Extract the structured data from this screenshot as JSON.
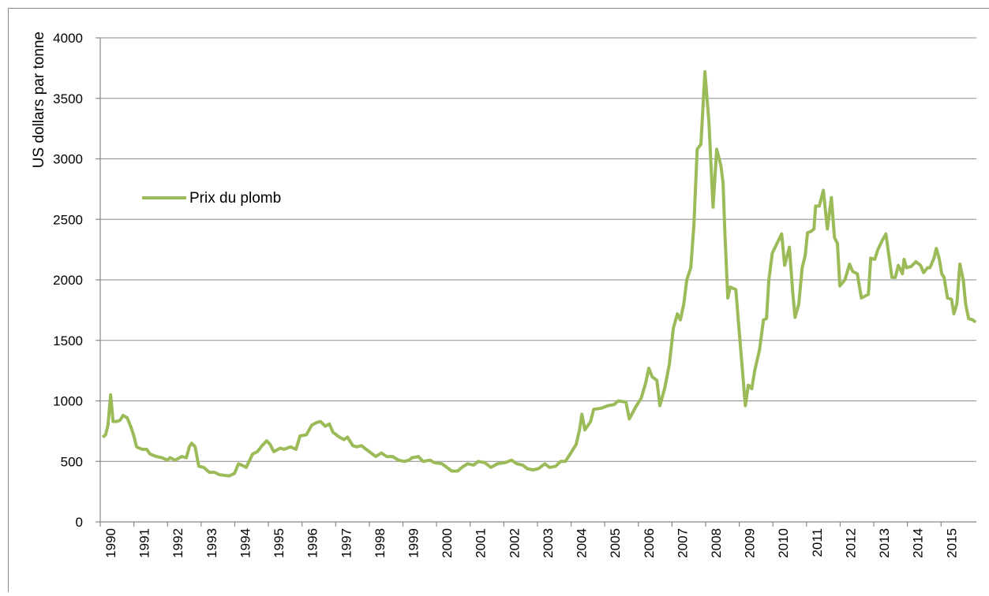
{
  "chart_data": {
    "type": "line",
    "y_label": "US dollars par tonne",
    "xlim": [
      1990,
      2016.05
    ],
    "xticks": [
      1990,
      1991,
      1992,
      1993,
      1994,
      1995,
      1996,
      1997,
      1998,
      1999,
      2000,
      2001,
      2002,
      2003,
      2004,
      2005,
      2006,
      2007,
      2008,
      2009,
      2010,
      2011,
      2012,
      2013,
      2014,
      2015
    ],
    "ylim": [
      0,
      4000
    ],
    "yticks": [
      0,
      500,
      1000,
      1500,
      2000,
      2500,
      3000,
      3500,
      4000
    ],
    "grid": true,
    "legend": "left",
    "series": [
      {
        "name": "Prix du plomb",
        "color": "#9bbb59",
        "x": [
          1990.07,
          1990.16,
          1990.23,
          1990.31,
          1990.38,
          1990.49,
          1990.59,
          1990.68,
          1990.8,
          1990.92,
          1991.01,
          1991.08,
          1991.24,
          1991.38,
          1991.48,
          1991.67,
          1991.83,
          1992.0,
          1992.07,
          1992.23,
          1992.42,
          1992.56,
          1992.65,
          1992.72,
          1992.82,
          1992.93,
          1993.08,
          1993.24,
          1993.4,
          1993.54,
          1993.83,
          1993.99,
          1994.11,
          1994.2,
          1994.34,
          1994.53,
          1994.67,
          1994.81,
          1994.95,
          1995.05,
          1995.16,
          1995.35,
          1995.47,
          1995.66,
          1995.82,
          1995.94,
          1996.13,
          1996.29,
          1996.43,
          1996.55,
          1996.69,
          1996.81,
          1996.92,
          1997.11,
          1997.25,
          1997.35,
          1997.51,
          1997.63,
          1997.77,
          1997.86,
          1998.05,
          1998.19,
          1998.36,
          1998.52,
          1998.69,
          1998.87,
          1999.04,
          1999.18,
          1999.27,
          1999.46,
          1999.6,
          1999.81,
          1999.93,
          2000.16,
          2000.31,
          2000.45,
          2000.63,
          2000.75,
          2000.92,
          2001.1,
          2001.24,
          2001.43,
          2001.62,
          2001.81,
          2002.04,
          2002.23,
          2002.39,
          2002.56,
          2002.7,
          2002.86,
          2003.03,
          2003.22,
          2003.36,
          2003.54,
          2003.69,
          2003.83,
          2003.97,
          2004.15,
          2004.25,
          2004.32,
          2004.41,
          2004.58,
          2004.67,
          2004.91,
          2005.09,
          2005.28,
          2005.4,
          2005.63,
          2005.73,
          2005.92,
          2006.08,
          2006.22,
          2006.31,
          2006.41,
          2006.55,
          2006.64,
          2006.78,
          2006.92,
          2007.04,
          2007.16,
          2007.25,
          2007.35,
          2007.44,
          2007.56,
          2007.65,
          2007.75,
          2007.86,
          2007.98,
          2008.1,
          2008.22,
          2008.33,
          2008.45,
          2008.52,
          2008.57,
          2008.66,
          2008.73,
          2008.9,
          2008.99,
          2009.11,
          2009.18,
          2009.27,
          2009.37,
          2009.46,
          2009.6,
          2009.72,
          2009.81,
          2009.88,
          2009.98,
          2010.12,
          2010.26,
          2010.35,
          2010.49,
          2010.59,
          2010.66,
          2010.77,
          2010.87,
          2010.96,
          2011.03,
          2011.13,
          2011.22,
          2011.27,
          2011.38,
          2011.5,
          2011.62,
          2011.74,
          2011.83,
          2011.92,
          2011.99,
          2012.14,
          2012.28,
          2012.37,
          2012.51,
          2012.63,
          2012.84,
          2012.91,
          2013.03,
          2013.12,
          2013.26,
          2013.36,
          2013.45,
          2013.54,
          2013.64,
          2013.73,
          2013.85,
          2013.9,
          2013.97,
          2014.11,
          2014.25,
          2014.39,
          2014.48,
          2014.6,
          2014.67,
          2014.79,
          2014.86,
          2014.95,
          2015.02,
          2015.09,
          2015.19,
          2015.31,
          2015.38,
          2015.47,
          2015.56,
          2015.66,
          2015.73,
          2015.82,
          2015.94,
          2016.03
        ],
        "values": [
          700,
          720,
          800,
          1050,
          830,
          830,
          840,
          880,
          860,
          780,
          700,
          620,
          600,
          600,
          560,
          540,
          530,
          510,
          530,
          510,
          540,
          530,
          620,
          650,
          620,
          460,
          450,
          410,
          410,
          390,
          380,
          400,
          480,
          470,
          450,
          560,
          580,
          630,
          670,
          640,
          580,
          610,
          600,
          620,
          600,
          710,
          720,
          800,
          820,
          830,
          790,
          810,
          740,
          700,
          680,
          700,
          630,
          620,
          630,
          610,
          570,
          540,
          570,
          540,
          540,
          510,
          500,
          510,
          530,
          540,
          500,
          510,
          490,
          480,
          450,
          420,
          420,
          450,
          480,
          470,
          500,
          490,
          450,
          480,
          490,
          510,
          480,
          470,
          440,
          430,
          440,
          480,
          450,
          460,
          500,
          500,
          560,
          640,
          760,
          890,
          760,
          830,
          930,
          940,
          960,
          970,
          1000,
          990,
          850,
          950,
          1020,
          1150,
          1270,
          1200,
          1170,
          960,
          1100,
          1300,
          1600,
          1720,
          1670,
          1800,
          2000,
          2100,
          2450,
          3080,
          3120,
          3720,
          3300,
          2600,
          3080,
          2950,
          2800,
          2400,
          1850,
          1940,
          1920,
          1600,
          1200,
          960,
          1130,
          1100,
          1250,
          1420,
          1670,
          1680,
          2000,
          2220,
          2300,
          2380,
          2120,
          2270,
          1900,
          1690,
          1800,
          2100,
          2200,
          2390,
          2400,
          2420,
          2610,
          2610,
          2740,
          2420,
          2680,
          2350,
          2300,
          1950,
          2000,
          2130,
          2070,
          2050,
          1850,
          1880,
          2180,
          2170,
          2250,
          2330,
          2380,
          2200,
          2020,
          2020,
          2120,
          2050,
          2170,
          2100,
          2110,
          2150,
          2120,
          2060,
          2100,
          2100,
          2180,
          2260,
          2170,
          2050,
          2020,
          1850,
          1840,
          1720,
          1800,
          2130,
          2000,
          1800,
          1680,
          1670,
          1650
        ]
      }
    ]
  }
}
